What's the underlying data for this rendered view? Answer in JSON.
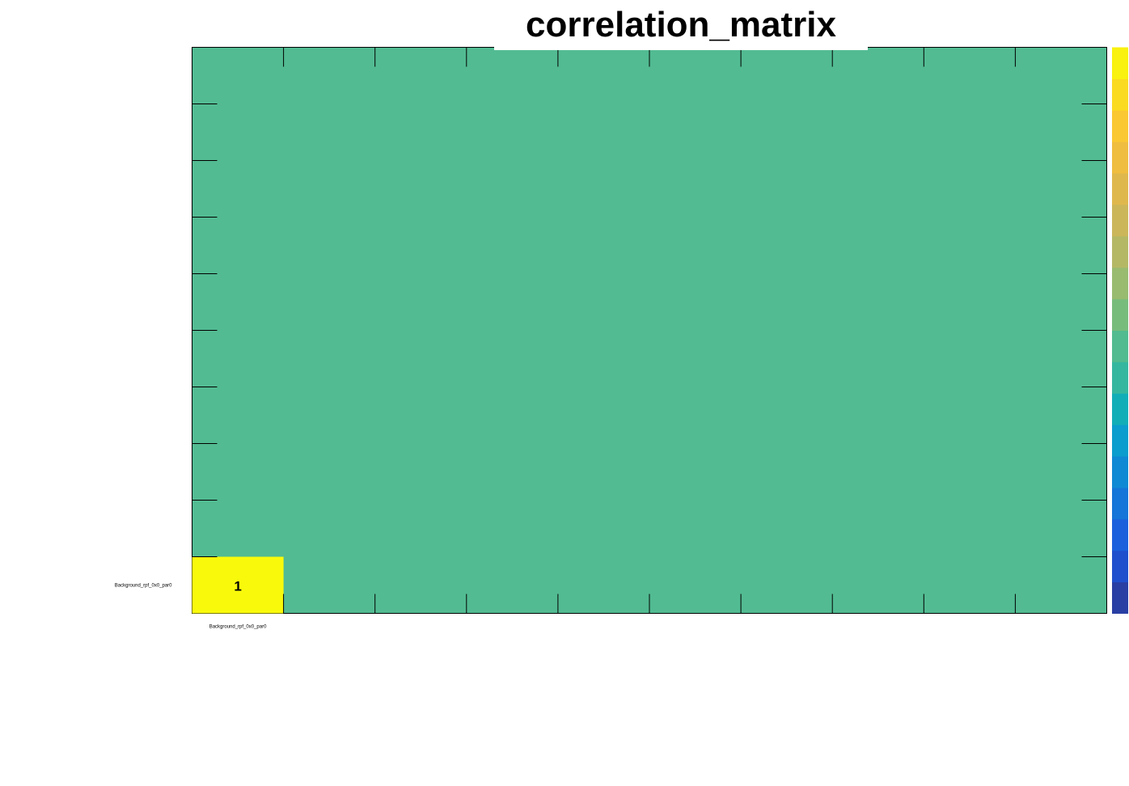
{
  "chart_data": {
    "type": "heatmap",
    "title": "correlation_matrix",
    "x_categories": [
      "Background_rpf_0x0_par0"
    ],
    "y_categories": [
      "Background_rpf_0x0_par0"
    ],
    "values": [
      [
        1
      ]
    ],
    "cell_labels": [
      "1"
    ],
    "x_range": [
      0,
      10
    ],
    "y_range": [
      0,
      10
    ],
    "z_range": [
      -1,
      1
    ],
    "background_value": 0,
    "palette_colors": [
      "#2a3fa3",
      "#1f4fcd",
      "#1a60dc",
      "#1575d8",
      "#0f89d4",
      "#0a9dcd",
      "#12aeb8",
      "#35b79f",
      "#52bb8f",
      "#78bc7c",
      "#98bb70",
      "#b4b865",
      "#cbb65a",
      "#dfb84d",
      "#efbd3f",
      "#fac832",
      "#fbda22",
      "#f9f10f"
    ],
    "colors": {
      "cell_one": "#f9fa0b",
      "background": "#52bb92",
      "frame": "#000000"
    }
  }
}
